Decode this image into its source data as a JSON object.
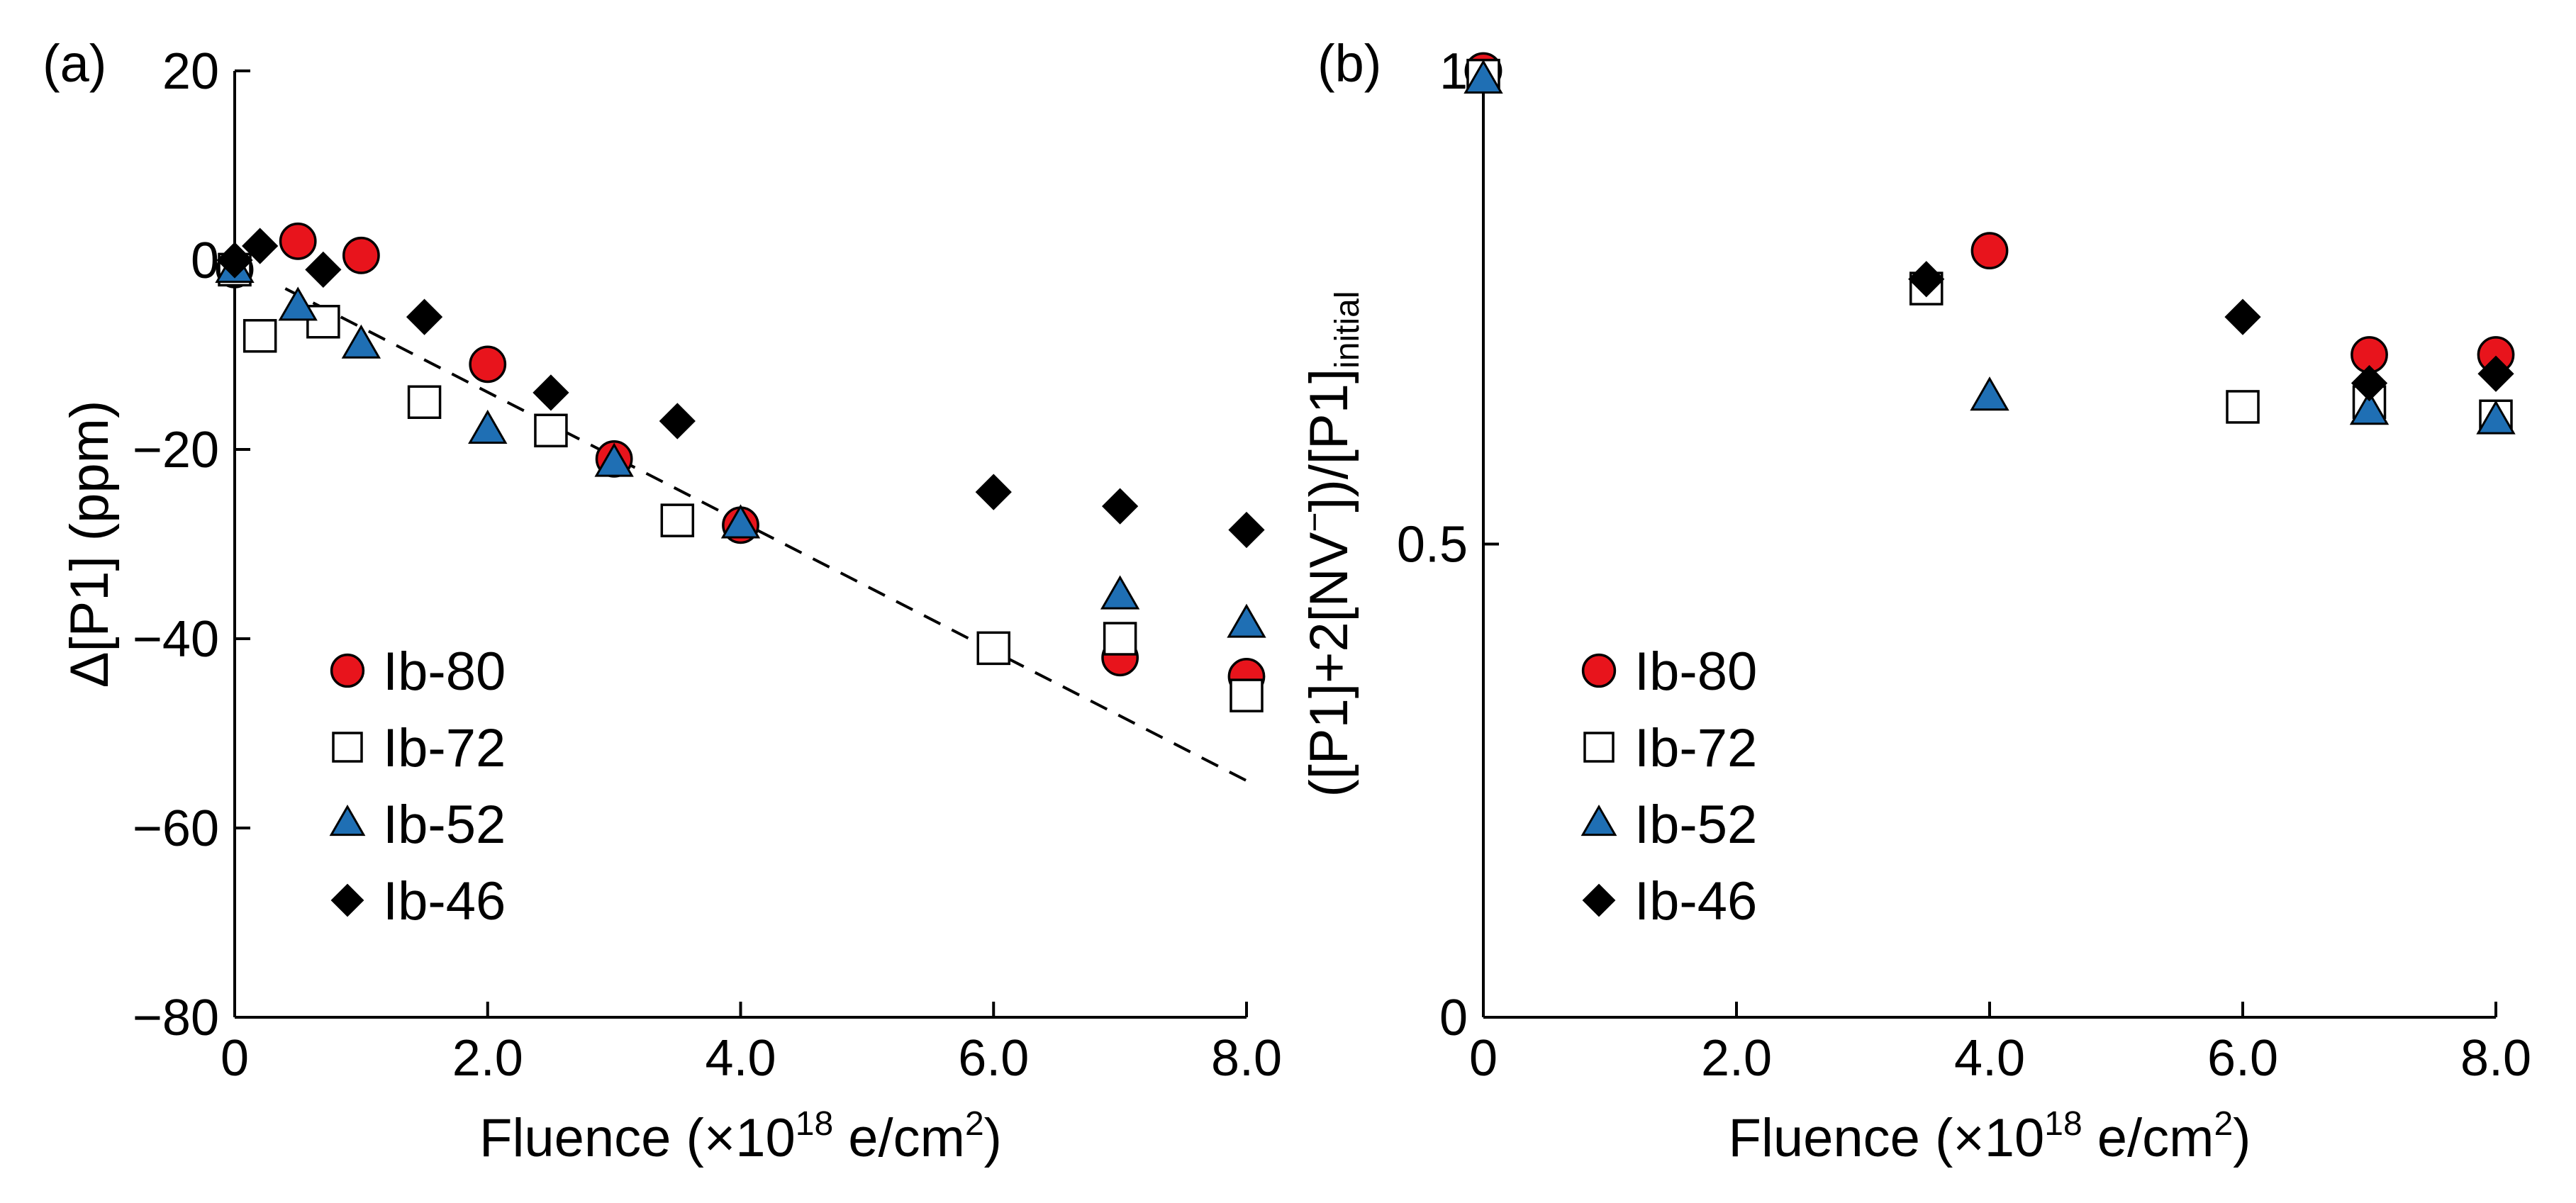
{
  "chart_data": [
    {
      "type": "scatter",
      "panel_label": "(a)",
      "xlabel": {
        "prefix": "Fluence (×10",
        "exponent": "18",
        "unit": " e/cm",
        "unit_exponent": "2",
        "suffix": ")"
      },
      "ylabel": "Δ[P1] (ppm)",
      "xlim": [
        0,
        8
      ],
      "ylim": [
        -80,
        20
      ],
      "x_ticks": [
        0,
        2,
        4,
        6,
        8
      ],
      "x_tick_labels": [
        "0",
        "2.0",
        "4.0",
        "6.0",
        "8.0"
      ],
      "y_ticks": [
        20,
        0,
        -20,
        -40,
        -60,
        -80
      ],
      "y_tick_labels": [
        "20",
        "0",
        "−20",
        "−40",
        "−60",
        "−80"
      ],
      "grid": false,
      "legend_position": "lower-left",
      "series": [
        {
          "name": "Ib-80",
          "marker": "circle",
          "color": "#e8141c",
          "x": [
            0,
            0.5,
            1.0,
            2.0,
            3.0,
            4.0,
            7.0,
            8.0
          ],
          "y": [
            -1,
            2,
            0.5,
            -11,
            -21,
            -28,
            -42,
            -44
          ]
        },
        {
          "name": "Ib-72",
          "marker": "square-open",
          "color": "#ffffff",
          "x": [
            0,
            0.2,
            0.7,
            1.5,
            2.5,
            3.5,
            6.0,
            7.0,
            8.0
          ],
          "y": [
            -1,
            -8,
            -6.5,
            -15,
            -18,
            -27.5,
            -41,
            -40,
            -46
          ]
        },
        {
          "name": "Ib-52",
          "marker": "triangle",
          "color": "#1f6fb4",
          "x": [
            0,
            0.5,
            1.0,
            2.0,
            3.0,
            4.0,
            7.0,
            8.0
          ],
          "y": [
            -1,
            -5,
            -9,
            -18,
            -21.5,
            -28,
            -35.5,
            -38.5
          ]
        },
        {
          "name": "Ib-46",
          "marker": "diamond",
          "color": "#000000",
          "x": [
            0,
            0.2,
            0.7,
            1.5,
            2.5,
            3.5,
            6.0,
            7.0,
            8.0
          ],
          "y": [
            0,
            1.5,
            -1,
            -6,
            -14,
            -17,
            -24.5,
            -26,
            -28.5
          ]
        }
      ],
      "fit_line": {
        "style": "dashed",
        "x": [
          0.4,
          8.0
        ],
        "y": [
          -3,
          -55
        ]
      }
    },
    {
      "type": "scatter",
      "panel_label": "(b)",
      "xlabel": {
        "prefix": "Fluence (×10",
        "exponent": "18",
        "unit": " e/cm",
        "unit_exponent": "2",
        "suffix": ")"
      },
      "ylabel": {
        "main": "([P1]+2[NV",
        "sup": "−",
        "mid": "])/[P1]",
        "sub": "initial"
      },
      "xlim": [
        0,
        8
      ],
      "ylim": [
        0,
        1
      ],
      "x_ticks": [
        0,
        2,
        4,
        6,
        8
      ],
      "x_tick_labels": [
        "0",
        "2.0",
        "4.0",
        "6.0",
        "8.0"
      ],
      "y_ticks": [
        1,
        0.5,
        0
      ],
      "y_tick_labels": [
        "1",
        "0.5",
        "0"
      ],
      "grid": false,
      "legend_position": "lower-left",
      "series": [
        {
          "name": "Ib-80",
          "marker": "circle",
          "color": "#e8141c",
          "x": [
            0,
            4.0,
            7.0,
            8.0
          ],
          "y": [
            1.0,
            0.81,
            0.7,
            0.7
          ]
        },
        {
          "name": "Ib-72",
          "marker": "square-open",
          "color": "#ffffff",
          "x": [
            0,
            3.5,
            6.0,
            7.0,
            8.0
          ],
          "y": [
            0.995,
            0.77,
            0.645,
            0.65,
            0.635
          ]
        },
        {
          "name": "Ib-52",
          "marker": "triangle",
          "color": "#1f6fb4",
          "x": [
            0,
            4.0,
            7.0,
            8.0
          ],
          "y": [
            0.99,
            0.655,
            0.64,
            0.63
          ]
        },
        {
          "name": "Ib-46",
          "marker": "diamond",
          "color": "#000000",
          "x": [
            3.5,
            6.0,
            7.0,
            8.0
          ],
          "y": [
            0.78,
            0.74,
            0.67,
            0.68
          ]
        }
      ]
    }
  ]
}
